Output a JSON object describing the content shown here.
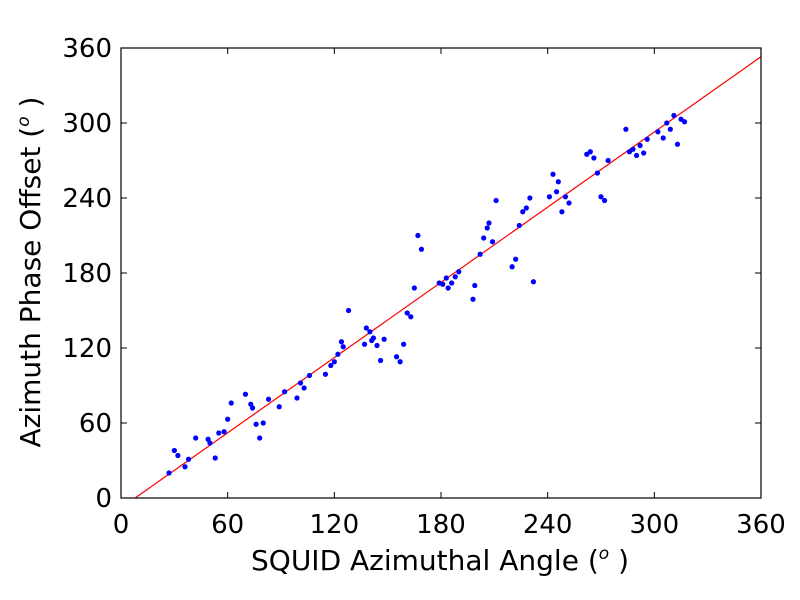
{
  "chart_data": {
    "type": "scatter",
    "title": "",
    "xlabel": "SQUID Azimuthal Angle",
    "ylabel": "Azimuth Phase Offset",
    "unit_paren_open": "(",
    "unit_degree": "o",
    "unit_paren_close": " )",
    "xlim": [
      0,
      360
    ],
    "ylim": [
      0,
      360
    ],
    "xticks": [
      "0",
      "60",
      "120",
      "180",
      "240",
      "300",
      "360"
    ],
    "yticks": [
      "0",
      "60",
      "120",
      "180",
      "240",
      "300",
      "360"
    ],
    "grid": false,
    "legend": "none",
    "colors": {
      "points": "#0000ff",
      "fit_line": "#ff0000",
      "axes": "#000000"
    },
    "fit_line": {
      "x": [
        0,
        360
      ],
      "y": [
        -8,
        353
      ]
    },
    "series": [
      {
        "x": [
          27,
          30,
          32,
          36,
          38,
          42,
          49,
          50,
          53,
          55,
          58,
          60,
          62,
          70,
          73,
          74,
          76,
          78,
          80,
          83,
          89,
          92,
          99,
          101,
          103,
          106,
          115,
          118,
          120,
          122,
          124,
          125,
          128,
          137,
          138,
          140,
          141,
          142,
          144,
          146,
          148,
          155,
          157,
          159,
          161,
          163,
          165,
          167,
          169,
          179,
          181,
          183,
          184,
          186,
          188,
          190,
          198,
          199,
          202,
          204,
          206,
          207,
          209,
          211,
          220,
          222,
          224,
          226,
          228,
          230,
          232,
          241,
          243,
          245,
          246,
          248,
          250,
          252,
          262,
          264,
          266,
          268,
          270,
          272,
          274,
          284,
          286,
          288,
          290,
          292,
          294,
          296,
          302,
          305,
          307,
          309,
          311,
          313,
          315,
          317
        ],
        "y": [
          20,
          38,
          34,
          25,
          31,
          48,
          47,
          44,
          32,
          52,
          53,
          63,
          76,
          83,
          75,
          72,
          59,
          48,
          60,
          79,
          73,
          85,
          80,
          92,
          88,
          98,
          99,
          106,
          109,
          115,
          125,
          121,
          150,
          123,
          136,
          133,
          126,
          128,
          122,
          110,
          127,
          113,
          109,
          123,
          148,
          145,
          168,
          210,
          199,
          172,
          171,
          176,
          168,
          172,
          177,
          181,
          159,
          170,
          195,
          208,
          216,
          220,
          205,
          238,
          185,
          191,
          218,
          229,
          232,
          240,
          173,
          241,
          259,
          245,
          253,
          229,
          241,
          236,
          275,
          277,
          272,
          260,
          241,
          238,
          270,
          295,
          277,
          279,
          274,
          282,
          276,
          287,
          293,
          288,
          300,
          295,
          306,
          283,
          303,
          301
        ]
      }
    ]
  }
}
